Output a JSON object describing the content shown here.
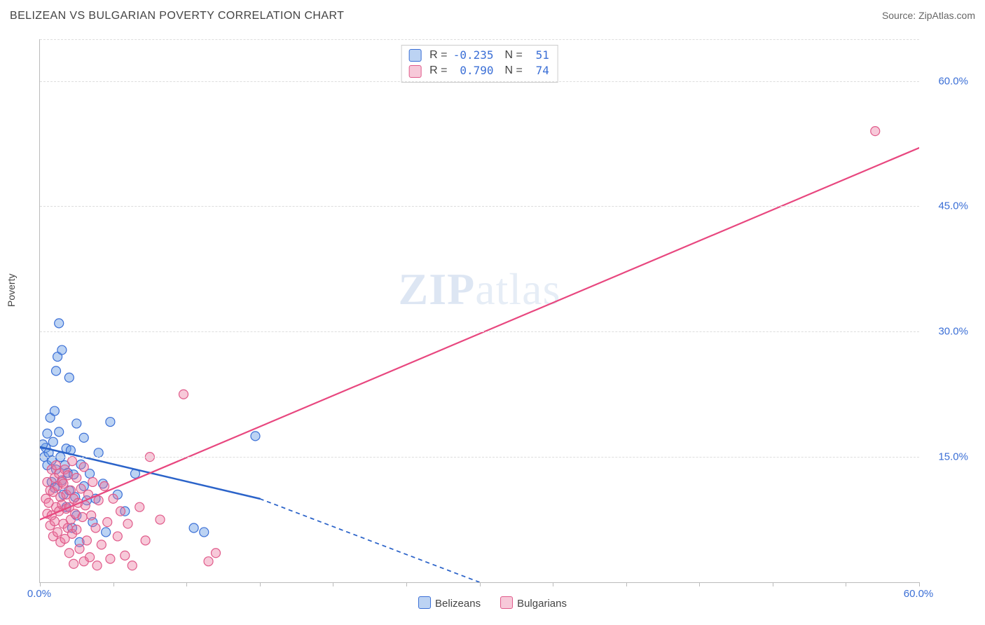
{
  "header": {
    "title": "BELIZEAN VS BULGARIAN POVERTY CORRELATION CHART",
    "source_prefix": "Source: ",
    "source_name": "ZipAtlas.com"
  },
  "watermark": {
    "zip": "ZIP",
    "atlas": "atlas"
  },
  "chart": {
    "type": "scatter",
    "ylabel": "Poverty",
    "background_color": "#ffffff",
    "grid_color": "#dddddd",
    "axis_color": "#bbbbbb",
    "tick_label_color": "#3b6fd6",
    "tick_label_fontsize": 15,
    "xlim": [
      0,
      60
    ],
    "ylim": [
      0,
      65
    ],
    "x_ticks": [
      0,
      5,
      10,
      15,
      20,
      25,
      30,
      35,
      40,
      45,
      50,
      55,
      60
    ],
    "x_tick_labels": {
      "0": "0.0%",
      "60": "60.0%"
    },
    "y_gridlines": [
      15,
      30,
      45,
      60,
      65
    ],
    "y_tick_labels": {
      "15": "15.0%",
      "30": "30.0%",
      "45": "45.0%",
      "60": "60.0%"
    },
    "series": [
      {
        "id": "belizeans",
        "label": "Belizeans",
        "marker_fill": "rgba(106,158,228,0.45)",
        "marker_stroke": "#3b6fd6",
        "marker_stroke_width": 1.2,
        "marker_radius": 6.5,
        "regression": {
          "color": "#2b63c9",
          "width": 2.5,
          "solid": {
            "x1": 0,
            "y1": 16.2,
            "x2": 15,
            "y2": 10.0
          },
          "dashed": {
            "x1": 15,
            "y1": 10.0,
            "x2": 30,
            "y2": 0.0
          },
          "dash_pattern": "6,5"
        },
        "R_label": "R =",
        "R_value": "-0.235",
        "N_label": "N =",
        "N_value": "51",
        "points": [
          [
            0.3,
            15.0
          ],
          [
            0.4,
            16.1
          ],
          [
            0.5,
            14.0
          ],
          [
            0.5,
            17.8
          ],
          [
            0.6,
            15.5
          ],
          [
            0.7,
            19.7
          ],
          [
            0.8,
            14.6
          ],
          [
            0.8,
            12.0
          ],
          [
            0.9,
            16.8
          ],
          [
            1.0,
            11.3
          ],
          [
            1.0,
            20.5
          ],
          [
            1.1,
            13.5
          ],
          [
            1.1,
            25.3
          ],
          [
            1.2,
            27.0
          ],
          [
            1.3,
            18.0
          ],
          [
            1.3,
            31.0
          ],
          [
            1.4,
            15.0
          ],
          [
            1.5,
            12.2
          ],
          [
            1.5,
            27.8
          ],
          [
            1.6,
            10.5
          ],
          [
            1.7,
            14.0
          ],
          [
            1.8,
            16.0
          ],
          [
            1.8,
            9.0
          ],
          [
            1.9,
            13.1
          ],
          [
            2.0,
            11.0
          ],
          [
            2.0,
            24.5
          ],
          [
            2.1,
            15.8
          ],
          [
            2.2,
            6.5
          ],
          [
            2.3,
            12.9
          ],
          [
            2.4,
            10.2
          ],
          [
            2.5,
            8.0
          ],
          [
            2.5,
            19.0
          ],
          [
            2.7,
            4.8
          ],
          [
            2.8,
            14.1
          ],
          [
            3.0,
            11.5
          ],
          [
            3.0,
            17.3
          ],
          [
            3.2,
            9.8
          ],
          [
            3.4,
            13.0
          ],
          [
            3.6,
            7.2
          ],
          [
            3.8,
            10.0
          ],
          [
            4.0,
            15.5
          ],
          [
            4.3,
            11.8
          ],
          [
            4.5,
            6.0
          ],
          [
            4.8,
            19.2
          ],
          [
            5.3,
            10.5
          ],
          [
            5.8,
            8.5
          ],
          [
            6.5,
            13.0
          ],
          [
            10.5,
            6.5
          ],
          [
            11.2,
            6.0
          ],
          [
            14.7,
            17.5
          ],
          [
            0.2,
            16.5
          ]
        ]
      },
      {
        "id": "bulgarians",
        "label": "Bulgarians",
        "marker_fill": "rgba(236,120,160,0.40)",
        "marker_stroke": "#e05a8a",
        "marker_stroke_width": 1.2,
        "marker_radius": 6.5,
        "regression": {
          "color": "#e8477f",
          "width": 2.2,
          "solid": {
            "x1": 0,
            "y1": 7.5,
            "x2": 60,
            "y2": 52.0
          }
        },
        "R_label": "R =",
        "R_value": " 0.790",
        "N_label": "N =",
        "N_value": "74",
        "points": [
          [
            0.4,
            10.0
          ],
          [
            0.5,
            8.2
          ],
          [
            0.5,
            12.0
          ],
          [
            0.6,
            9.5
          ],
          [
            0.7,
            11.0
          ],
          [
            0.7,
            6.8
          ],
          [
            0.8,
            13.5
          ],
          [
            0.8,
            8.0
          ],
          [
            0.9,
            10.8
          ],
          [
            0.9,
            5.5
          ],
          [
            1.0,
            12.5
          ],
          [
            1.0,
            7.3
          ],
          [
            1.1,
            9.0
          ],
          [
            1.1,
            14.0
          ],
          [
            1.2,
            11.5
          ],
          [
            1.2,
            6.0
          ],
          [
            1.3,
            8.5
          ],
          [
            1.3,
            13.0
          ],
          [
            1.4,
            10.2
          ],
          [
            1.4,
            4.8
          ],
          [
            1.5,
            12.0
          ],
          [
            1.5,
            9.3
          ],
          [
            1.6,
            7.0
          ],
          [
            1.6,
            11.8
          ],
          [
            1.7,
            5.2
          ],
          [
            1.7,
            13.5
          ],
          [
            1.8,
            8.8
          ],
          [
            1.8,
            10.5
          ],
          [
            1.9,
            6.5
          ],
          [
            1.9,
            12.8
          ],
          [
            2.0,
            9.0
          ],
          [
            2.0,
            3.5
          ],
          [
            2.1,
            11.0
          ],
          [
            2.1,
            7.5
          ],
          [
            2.2,
            14.5
          ],
          [
            2.2,
            5.8
          ],
          [
            2.3,
            10.0
          ],
          [
            2.3,
            2.2
          ],
          [
            2.4,
            8.2
          ],
          [
            2.5,
            12.5
          ],
          [
            2.5,
            6.3
          ],
          [
            2.6,
            9.5
          ],
          [
            2.7,
            4.0
          ],
          [
            2.8,
            11.2
          ],
          [
            2.9,
            7.8
          ],
          [
            3.0,
            2.5
          ],
          [
            3.0,
            13.8
          ],
          [
            3.1,
            9.2
          ],
          [
            3.2,
            5.0
          ],
          [
            3.3,
            10.5
          ],
          [
            3.4,
            3.0
          ],
          [
            3.5,
            8.0
          ],
          [
            3.6,
            12.0
          ],
          [
            3.8,
            6.5
          ],
          [
            3.9,
            2.0
          ],
          [
            4.0,
            9.8
          ],
          [
            4.2,
            4.5
          ],
          [
            4.4,
            11.5
          ],
          [
            4.6,
            7.2
          ],
          [
            4.8,
            2.8
          ],
          [
            5.0,
            10.0
          ],
          [
            5.3,
            5.5
          ],
          [
            5.5,
            8.5
          ],
          [
            5.8,
            3.2
          ],
          [
            6.0,
            7.0
          ],
          [
            6.3,
            2.0
          ],
          [
            6.8,
            9.0
          ],
          [
            7.2,
            5.0
          ],
          [
            7.5,
            15.0
          ],
          [
            8.2,
            7.5
          ],
          [
            9.8,
            22.5
          ],
          [
            11.5,
            2.5
          ],
          [
            12.0,
            3.5
          ],
          [
            57.0,
            54.0
          ]
        ]
      }
    ]
  }
}
